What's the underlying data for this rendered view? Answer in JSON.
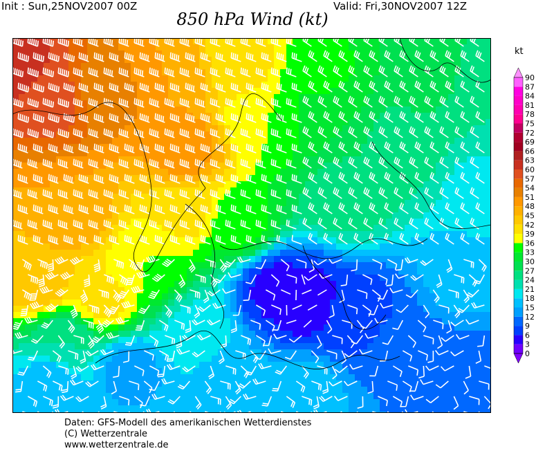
{
  "header": {
    "init": "Init : Sun,25NOV2007 00Z",
    "valid": "Valid: Fri,30NOV2007 12Z",
    "title": "850 hPa Wind (kt)"
  },
  "colorbar": {
    "unit": "kt",
    "labels": [
      "0",
      "3",
      "6",
      "9",
      "12",
      "15",
      "18",
      "21",
      "24",
      "27",
      "30",
      "33",
      "36",
      "39",
      "42",
      "45",
      "48",
      "51",
      "54",
      "57",
      "60",
      "63",
      "66",
      "69",
      "72",
      "75",
      "78",
      "81",
      "84",
      "87",
      "90"
    ],
    "colors": [
      "#7000ff",
      "#2800ff",
      "#0040ff",
      "#0068ff",
      "#00a0ff",
      "#00c0ff",
      "#00e8f0",
      "#00e0b0",
      "#00e080",
      "#00e050",
      "#00e830",
      "#00ff00",
      "#ffff00",
      "#ffe000",
      "#ffc800",
      "#ffb000",
      "#ff9800",
      "#e88000",
      "#e86800",
      "#e05020",
      "#c83020",
      "#b02020",
      "#a00020",
      "#b00030",
      "#c00060",
      "#ff0090",
      "#ff00b0",
      "#ff00c8",
      "#ff00e0",
      "#ff60ff"
    ],
    "under_color": "#8000ff",
    "over_color": "#ff90ff"
  },
  "footer": {
    "line1": "Daten: GFS-Modell des amerikanischen Wetterdienstes",
    "line2": "(C) Wetterzentrale",
    "line3": "www.wetterzentrale.de"
  }
}
